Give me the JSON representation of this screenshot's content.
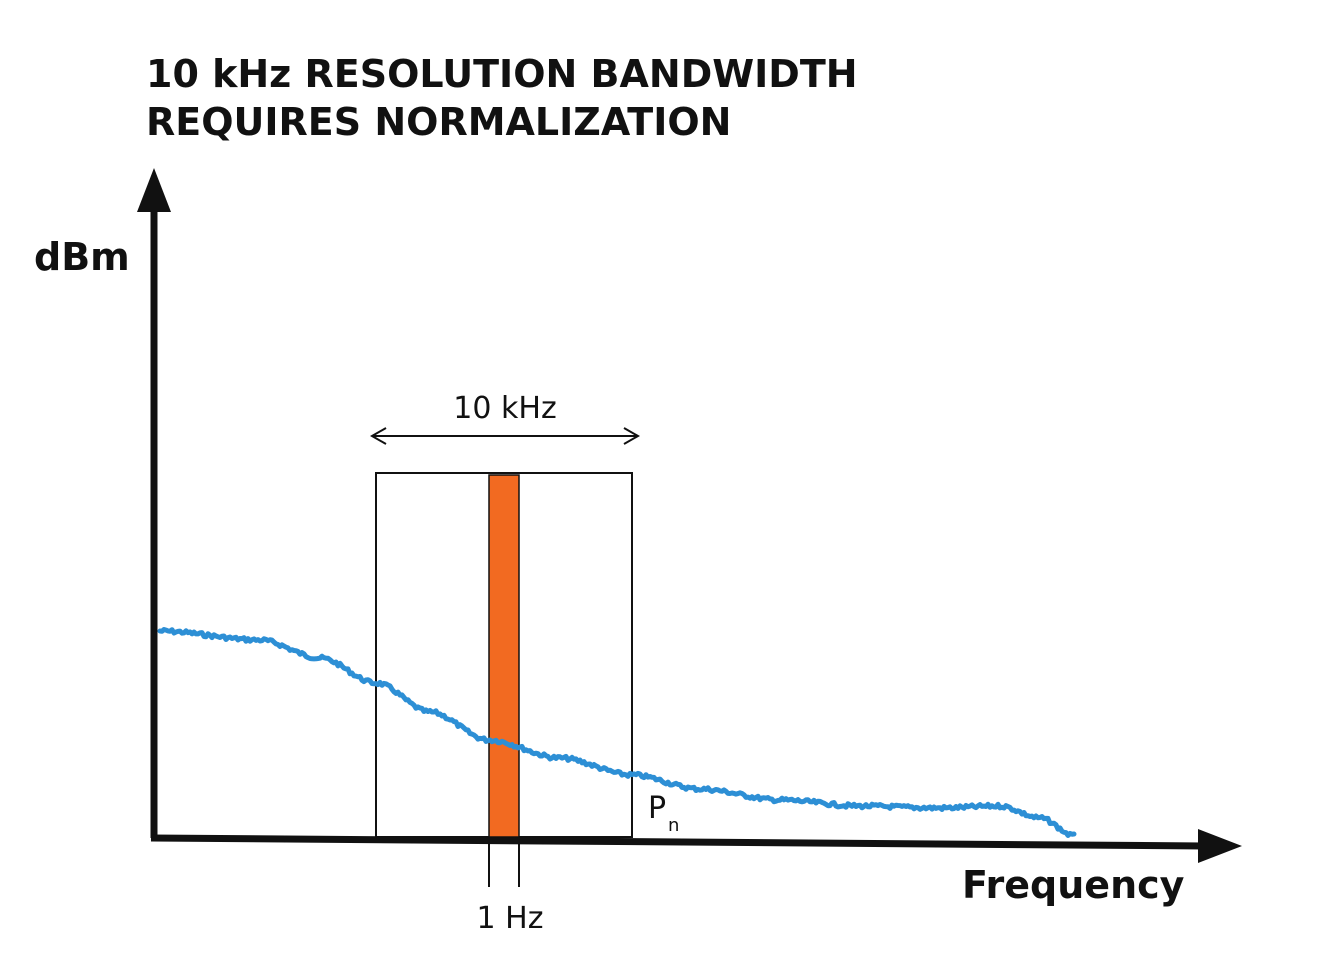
{
  "title": {
    "line1": "10 kHz RESOLUTION BANDWIDTH",
    "line2": "REQUIRES NORMALIZATION"
  },
  "axes": {
    "y_label": "dBm",
    "x_label": "Frequency"
  },
  "annotations": {
    "rbw_label": "10 kHz",
    "narrow_band_label": "1 Hz",
    "noise_power_label": "P",
    "noise_power_subscript": "n"
  },
  "colors": {
    "noise_trace": "#2d8fd5",
    "one_hz_band": "#f26a21",
    "axis": "#111111"
  }
}
